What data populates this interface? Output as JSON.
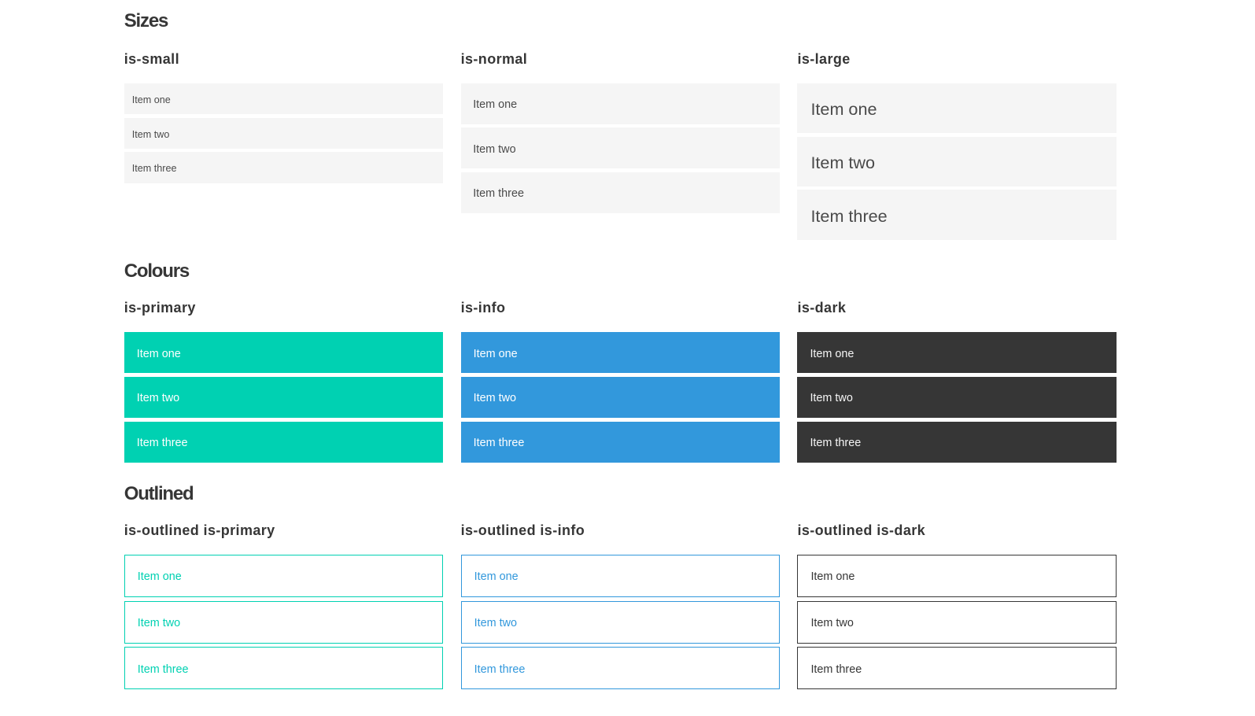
{
  "colors": {
    "background": "#ffffff",
    "item_background": "#f5f5f5",
    "item_text": "#4a4a4a",
    "heading_text": "#363636",
    "primary": "#00d1b2",
    "info": "#3298dc",
    "dark": "#363636",
    "text_on_color": "#ffffff",
    "text_on_dark": "#f5f5f5"
  },
  "sections": [
    {
      "title": "Sizes",
      "groups": [
        {
          "heading": "is-small",
          "items": [
            "Item one",
            "Item two",
            "Item three"
          ]
        },
        {
          "heading": "is-normal",
          "items": [
            "Item one",
            "Item two",
            "Item three"
          ]
        },
        {
          "heading": "is-large",
          "items": [
            "Item one",
            "Item two",
            "Item three"
          ]
        }
      ]
    },
    {
      "title": "Colours",
      "groups": [
        {
          "heading": "is-primary",
          "items": [
            "Item one",
            "Item two",
            "Item three"
          ]
        },
        {
          "heading": "is-info",
          "items": [
            "Item one",
            "Item two",
            "Item three"
          ]
        },
        {
          "heading": "is-dark",
          "items": [
            "Item one",
            "Item two",
            "Item three"
          ]
        }
      ]
    },
    {
      "title": "Outlined",
      "groups": [
        {
          "heading": "is-outlined is-primary",
          "items": [
            "Item one",
            "Item two",
            "Item three"
          ]
        },
        {
          "heading": "is-outlined is-info",
          "items": [
            "Item one",
            "Item two",
            "Item three"
          ]
        },
        {
          "heading": "is-outlined is-dark",
          "items": [
            "Item one",
            "Item two",
            "Item three"
          ]
        }
      ]
    }
  ]
}
